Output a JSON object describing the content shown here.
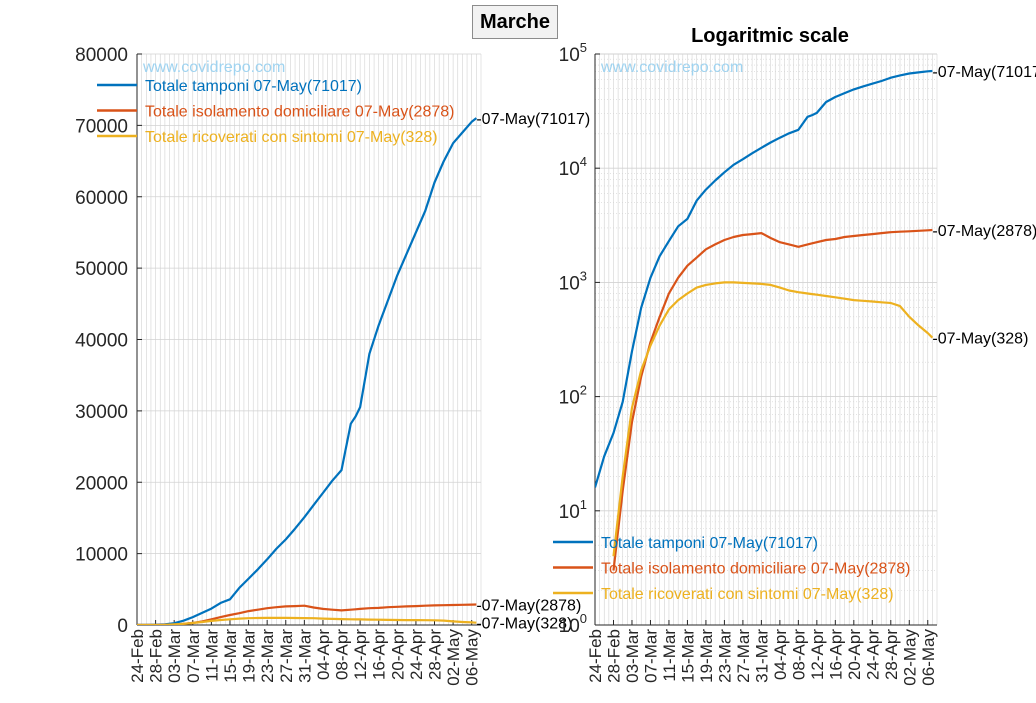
{
  "figure_title": "Marche",
  "watermark": "www.covidrepo.com",
  "colors": {
    "tamponi": "#0072BD",
    "isolamento": "#D95319",
    "ricoverati": "#EDB120",
    "watermark": "#9FD3F0",
    "grid": "#d2d2d2",
    "axis": "#262626"
  },
  "chart_data": [
    {
      "type": "line",
      "title": "",
      "xlabel": "",
      "ylabel": "",
      "x_ticks": [
        "24-Feb",
        "28-Feb",
        "03-Mar",
        "07-Mar",
        "11-Mar",
        "15-Mar",
        "19-Mar",
        "23-Mar",
        "27-Mar",
        "31-Mar",
        "04-Apr",
        "08-Apr",
        "12-Apr",
        "16-Apr",
        "20-Apr",
        "24-Apr",
        "28-Apr",
        "02-May",
        "06-May"
      ],
      "y_ticks": [
        "0",
        "10000",
        "20000",
        "30000",
        "40000",
        "50000",
        "60000",
        "70000",
        "80000"
      ],
      "ylim": [
        0,
        80000
      ],
      "y_scale": "linear",
      "grid": true,
      "legend": "top-left",
      "legend_entries": [
        "Totale tamponi 07-May(71017)",
        "Totale isolamento domiciliare 07-May(2878)",
        "Totale ricoverati con sintomi 07-May(328)"
      ],
      "end_labels": [
        "-07-May(71017)",
        "-07-May(2878)",
        "-07-May(328)"
      ],
      "x": [
        "24-Feb",
        "26-Feb",
        "28-Feb",
        "01-Mar",
        "03-Mar",
        "05-Mar",
        "07-Mar",
        "09-Mar",
        "11-Mar",
        "13-Mar",
        "15-Mar",
        "17-Mar",
        "19-Mar",
        "21-Mar",
        "23-Mar",
        "25-Mar",
        "27-Mar",
        "29-Mar",
        "31-Mar",
        "02-Apr",
        "04-Apr",
        "06-Apr",
        "08-Apr",
        "10-Apr",
        "11-Apr",
        "12-Apr",
        "14-Apr",
        "16-Apr",
        "18-Apr",
        "20-Apr",
        "22-Apr",
        "24-Apr",
        "26-Apr",
        "28-Apr",
        "30-Apr",
        "02-May",
        "04-May",
        "06-May",
        "07-May"
      ],
      "series": [
        {
          "name": "Totale tamponi 07-May(71017)",
          "values": [
            16,
            30,
            48,
            90,
            250,
            600,
            1100,
            1700,
            2300,
            3100,
            3600,
            5200,
            6500,
            7800,
            9200,
            10700,
            12000,
            13500,
            15100,
            16800,
            18500,
            20200,
            21700,
            28200,
            29200,
            30500,
            38000,
            42000,
            45500,
            49000,
            52000,
            55000,
            58000,
            62000,
            65000,
            67500,
            69000,
            70500,
            71017
          ]
        },
        {
          "name": "Totale isolamento domiciliare 07-May(2878)",
          "values": [
            0,
            0,
            3,
            15,
            60,
            150,
            300,
            500,
            800,
            1100,
            1400,
            1650,
            1950,
            2150,
            2350,
            2500,
            2600,
            2650,
            2700,
            2450,
            2250,
            2150,
            2050,
            2150,
            2200,
            2250,
            2350,
            2400,
            2500,
            2550,
            2600,
            2650,
            2700,
            2750,
            2780,
            2800,
            2830,
            2860,
            2878
          ]
        },
        {
          "name": "Totale ricoverati con sintomi 07-May(328)",
          "values": [
            0,
            0,
            4,
            20,
            80,
            170,
            280,
            420,
            580,
            700,
            800,
            900,
            950,
            980,
            1000,
            1000,
            990,
            980,
            970,
            950,
            900,
            850,
            820,
            800,
            790,
            780,
            760,
            740,
            720,
            700,
            690,
            680,
            670,
            660,
            620,
            500,
            420,
            360,
            328
          ]
        }
      ]
    },
    {
      "type": "line",
      "title": "Logaritmic scale",
      "xlabel": "",
      "ylabel": "",
      "x_ticks": [
        "24-Feb",
        "28-Feb",
        "03-Mar",
        "07-Mar",
        "11-Mar",
        "15-Mar",
        "19-Mar",
        "23-Mar",
        "27-Mar",
        "31-Mar",
        "04-Apr",
        "08-Apr",
        "12-Apr",
        "16-Apr",
        "20-Apr",
        "24-Apr",
        "28-Apr",
        "02-May",
        "06-May"
      ],
      "y_ticks": [
        {
          "base": "10",
          "exp": "0"
        },
        {
          "base": "10",
          "exp": "1"
        },
        {
          "base": "10",
          "exp": "2"
        },
        {
          "base": "10",
          "exp": "3"
        },
        {
          "base": "10",
          "exp": "4"
        },
        {
          "base": "10",
          "exp": "5"
        }
      ],
      "ylim": [
        1,
        100000
      ],
      "y_scale": "log",
      "grid": true,
      "legend": "bottom-left",
      "legend_entries": [
        "Totale tamponi 07-May(71017)",
        "Totale isolamento domiciliare 07-May(2878)",
        "Totale ricoverati con sintomi 07-May(328)"
      ],
      "end_labels": [
        "-07-May(71017)",
        "-07-May(2878)",
        "-07-May(328)"
      ],
      "x": [
        "24-Feb",
        "26-Feb",
        "28-Feb",
        "01-Mar",
        "03-Mar",
        "05-Mar",
        "07-Mar",
        "09-Mar",
        "11-Mar",
        "13-Mar",
        "15-Mar",
        "17-Mar",
        "19-Mar",
        "21-Mar",
        "23-Mar",
        "25-Mar",
        "27-Mar",
        "29-Mar",
        "31-Mar",
        "02-Apr",
        "04-Apr",
        "06-Apr",
        "08-Apr",
        "10-Apr",
        "11-Apr",
        "12-Apr",
        "14-Apr",
        "16-Apr",
        "18-Apr",
        "20-Apr",
        "22-Apr",
        "24-Apr",
        "26-Apr",
        "28-Apr",
        "30-Apr",
        "02-May",
        "04-May",
        "06-May",
        "07-May"
      ],
      "series": [
        {
          "name": "Totale tamponi 07-May(71017)",
          "values": [
            16,
            30,
            48,
            90,
            250,
            600,
            1100,
            1700,
            2300,
            3100,
            3600,
            5200,
            6500,
            7800,
            9200,
            10700,
            12000,
            13500,
            15100,
            16800,
            18500,
            20200,
            21700,
            28200,
            29200,
            30500,
            38000,
            42000,
            45500,
            49000,
            52000,
            55000,
            58000,
            62000,
            65000,
            67500,
            69000,
            70500,
            71017
          ]
        },
        {
          "name": "Totale isolamento domiciliare 07-May(2878)",
          "values": [
            0,
            0,
            3,
            15,
            60,
            150,
            300,
            500,
            800,
            1100,
            1400,
            1650,
            1950,
            2150,
            2350,
            2500,
            2600,
            2650,
            2700,
            2450,
            2250,
            2150,
            2050,
            2150,
            2200,
            2250,
            2350,
            2400,
            2500,
            2550,
            2600,
            2650,
            2700,
            2750,
            2780,
            2800,
            2830,
            2860,
            2878
          ]
        },
        {
          "name": "Totale ricoverati con sintomi 07-May(328)",
          "values": [
            0,
            0,
            4,
            20,
            80,
            170,
            280,
            420,
            580,
            700,
            800,
            900,
            950,
            980,
            1000,
            1000,
            990,
            980,
            970,
            950,
            900,
            850,
            820,
            800,
            790,
            780,
            760,
            740,
            720,
            700,
            690,
            680,
            670,
            660,
            620,
            500,
            420,
            360,
            328
          ]
        }
      ]
    }
  ]
}
